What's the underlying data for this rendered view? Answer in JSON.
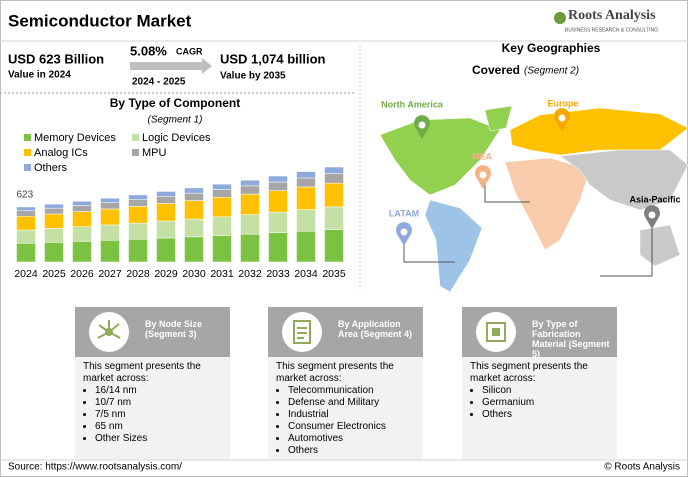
{
  "header": {
    "title": "Semiconductor Market",
    "logo": "Roots Analysis",
    "logo_tagline": "BUSINESS RESEARCH & CONSULTING"
  },
  "stats": [
    {
      "value": "USD 623 Billion",
      "label": "Value in 2024"
    },
    {
      "value": "5.08%",
      "unit": "CAGR",
      "label": "2024 - 2025"
    },
    {
      "value": "USD 1,074 billion",
      "label": "Value by 2035"
    }
  ],
  "chart_data": {
    "type": "bar",
    "stacked": true,
    "title": "By Type of Component",
    "subtitle": "(Segment 1)",
    "categories": [
      "2024",
      "2025",
      "2026",
      "2027",
      "2028",
      "2029",
      "2030",
      "2031",
      "2032",
      "2033",
      "2034",
      "2035"
    ],
    "series": [
      {
        "name": "Memory Devices",
        "color": "#7cc242",
        "values": [
          212,
          223,
          234,
          246,
          258,
          272,
          285,
          300,
          315,
          331,
          348,
          366
        ]
      },
      {
        "name": "Logic Devices",
        "color": "#c5e0a5",
        "values": [
          150,
          157,
          165,
          174,
          182,
          192,
          201,
          212,
          222,
          234,
          246,
          258
        ]
      },
      {
        "name": "Analog ICs",
        "color": "#ffc000",
        "values": [
          156,
          164,
          172,
          181,
          190,
          200,
          210,
          221,
          232,
          244,
          256,
          269
        ]
      },
      {
        "name": "MPU",
        "color": "#a6a6a6",
        "values": [
          62,
          66,
          69,
          72,
          76,
          80,
          84,
          88,
          93,
          97,
          102,
          108
        ]
      },
      {
        "name": "Others",
        "color": "#8eaadb",
        "values": [
          43,
          45,
          48,
          50,
          54,
          55,
          59,
          61,
          65,
          68,
          72,
          75
        ]
      }
    ],
    "total_label": "623"
  },
  "geographies": {
    "title": "Key Geographies",
    "subtitle": "Covered",
    "segment": "(Segment 2)",
    "regions": [
      {
        "label": "North America",
        "color": "#92d050"
      },
      {
        "label": "Europe",
        "color": "#ffc000"
      },
      {
        "label": "MEA",
        "color": "#f8cbad"
      },
      {
        "label": "LATAM",
        "color": "#9dc3e6"
      },
      {
        "label": "Asia-Pacific",
        "color": "#c9c9c9"
      }
    ]
  },
  "segments": [
    {
      "title": "By Node Size (Segment 3)",
      "intro": "This segment presents the market across:",
      "items": [
        "16/14 nm",
        "10/7 nm",
        "7/5 nm",
        "65 nm",
        "Other Sizes"
      ]
    },
    {
      "title": "By Application Area (Segment 4)",
      "intro": "This segment presents the market across:",
      "items": [
        "Telecommunication",
        "Defense and Military",
        "Industrial",
        "Consumer Electronics",
        "Automotives",
        "Others"
      ]
    },
    {
      "title": "By Type of Fabrication Material (Segment 5)",
      "intro": "This segment presents the market across:",
      "items": [
        "Silicon",
        "Germanium",
        "Others"
      ]
    }
  ],
  "footer": {
    "source": "Source: https://www.rootsanalysis.com/",
    "copyright": "© Roots Analysis"
  }
}
